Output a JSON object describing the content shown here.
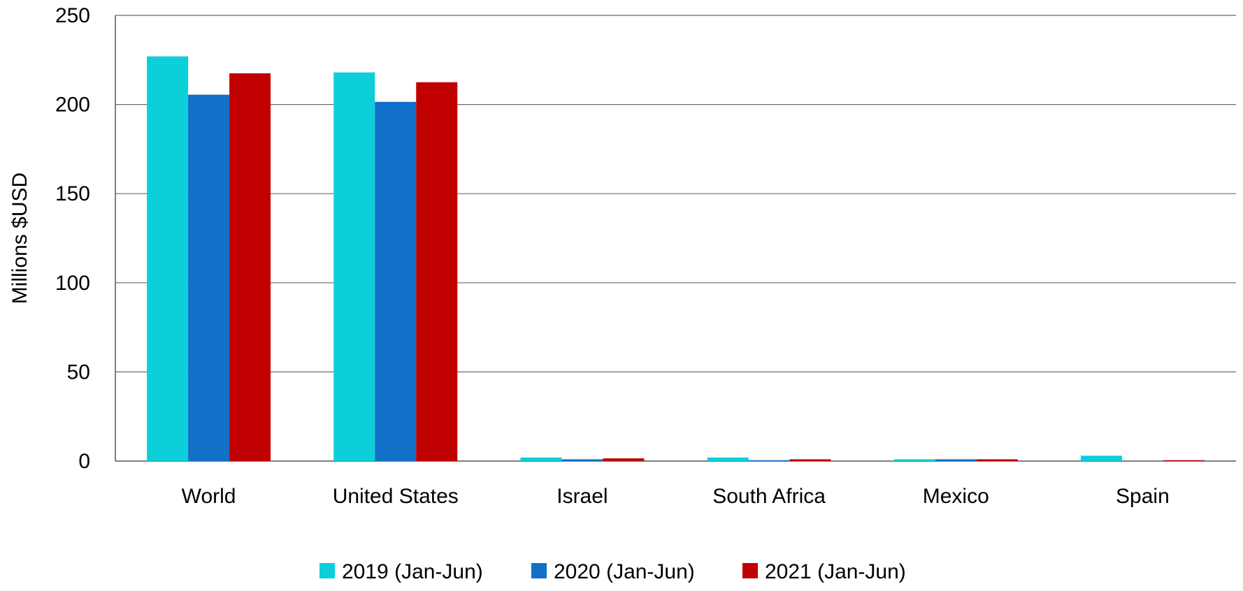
{
  "chart_data": {
    "type": "bar",
    "title": "",
    "xlabel": "",
    "ylabel": "Millions $USD",
    "ylim": [
      0,
      250
    ],
    "yticks": [
      0,
      50,
      100,
      150,
      200,
      250
    ],
    "grid": true,
    "legend_position": "bottom",
    "categories": [
      "World",
      "United States",
      "Israel",
      "South Africa",
      "Mexico",
      "Spain"
    ],
    "series": [
      {
        "name": "2019 (Jan-Jun)",
        "color": "#0ccfd9",
        "values": [
          227,
          218,
          2,
          2,
          1,
          3
        ]
      },
      {
        "name": "2020 (Jan-Jun)",
        "color": "#1270c8",
        "values": [
          205.5,
          201.5,
          1,
          0.5,
          1,
          0
        ]
      },
      {
        "name": "2021 (Jan-Jun)",
        "color": "#c00000",
        "values": [
          217.5,
          212.5,
          1.5,
          1,
          1,
          0.5
        ]
      }
    ]
  }
}
